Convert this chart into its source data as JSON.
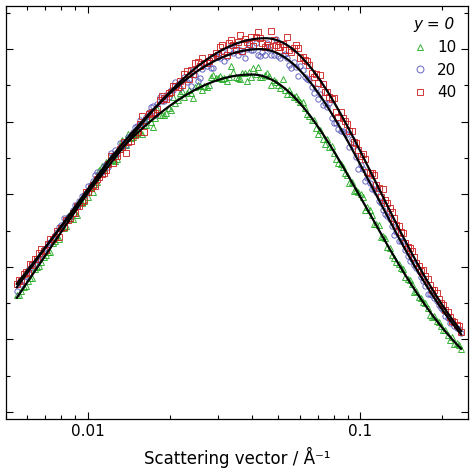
{
  "xlabel": "Scattering vector / Å⁻¹",
  "legend_title": "y = 0",
  "legend_labels": [
    "10",
    "20",
    "40"
  ],
  "legend_colors": [
    "#22aa22",
    "#5555bb",
    "#cc2222"
  ],
  "legend_markers": [
    "^",
    "o",
    "s"
  ],
  "q_min": 0.005,
  "q_max": 0.25,
  "background_color": "#ffffff",
  "curve_color": "#000000",
  "label_fontsize": 12
}
